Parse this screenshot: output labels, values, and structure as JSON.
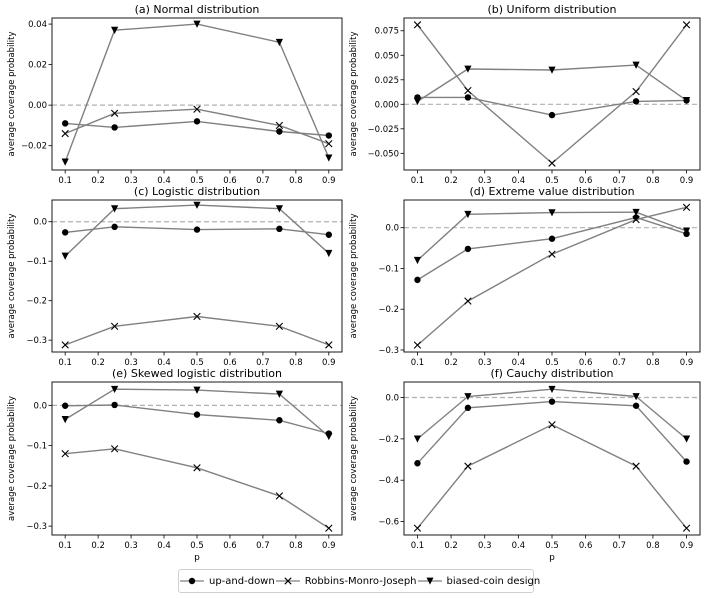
{
  "chart_data": [
    {
      "type": "line",
      "title": "(a) Normal distribution",
      "xlabel": "",
      "ylabel": "average coverage probability",
      "x": [
        0.1,
        0.25,
        0.5,
        0.75,
        0.9
      ],
      "xticks": [
        0.1,
        0.2,
        0.3,
        0.4,
        0.5,
        0.6,
        0.7,
        0.8,
        0.9
      ],
      "xtick_labels": [
        "0.1",
        "0.2",
        "0.3",
        "0.4",
        "0.5",
        "0.6",
        "0.7",
        "0.8",
        "0.9"
      ],
      "xlim": [
        0.06,
        0.94
      ],
      "ylim": [
        -0.032,
        0.043
      ],
      "yticks": [
        -0.02,
        0.0,
        0.02,
        0.04
      ],
      "ytick_labels": [
        "−0.02",
        "0.00",
        "0.02",
        "0.04"
      ],
      "series": [
        {
          "name": "up-and-down",
          "values": [
            -0.009,
            -0.011,
            -0.008,
            -0.013,
            -0.015
          ]
        },
        {
          "name": "Robbins-Monro-Joseph",
          "values": [
            -0.014,
            -0.004,
            -0.002,
            -0.01,
            -0.019
          ]
        },
        {
          "name": "biased-coin design",
          "values": [
            -0.028,
            0.037,
            0.04,
            0.031,
            -0.026
          ]
        }
      ]
    },
    {
      "type": "line",
      "title": "(b) Uniform distribution",
      "xlabel": "",
      "ylabel": "average coverage probability",
      "x": [
        0.1,
        0.25,
        0.5,
        0.75,
        0.9
      ],
      "xticks": [
        0.1,
        0.2,
        0.3,
        0.4,
        0.5,
        0.6,
        0.7,
        0.8,
        0.9
      ],
      "xtick_labels": [
        "0.1",
        "0.2",
        "0.3",
        "0.4",
        "0.5",
        "0.6",
        "0.7",
        "0.8",
        "0.9"
      ],
      "xlim": [
        0.06,
        0.94
      ],
      "ylim": [
        -0.067,
        0.088
      ],
      "yticks": [
        -0.05,
        -0.025,
        0.0,
        0.025,
        0.05,
        0.075
      ],
      "ytick_labels": [
        "−0.050",
        "−0.025",
        "0.000",
        "0.025",
        "0.050",
        "0.075"
      ],
      "series": [
        {
          "name": "up-and-down",
          "values": [
            0.007,
            0.007,
            -0.011,
            0.003,
            0.004
          ]
        },
        {
          "name": "Robbins-Monro-Joseph",
          "values": [
            0.081,
            0.014,
            -0.06,
            0.013,
            0.081
          ]
        },
        {
          "name": "biased-coin design",
          "values": [
            0.003,
            0.036,
            0.035,
            0.04,
            0.004
          ]
        }
      ]
    },
    {
      "type": "line",
      "title": "(c) Logistic distribution",
      "xlabel": "",
      "ylabel": "average coverage probability",
      "x": [
        0.1,
        0.25,
        0.5,
        0.75,
        0.9
      ],
      "xticks": [
        0.1,
        0.2,
        0.3,
        0.4,
        0.5,
        0.6,
        0.7,
        0.8,
        0.9
      ],
      "xtick_labels": [
        "0.1",
        "0.2",
        "0.3",
        "0.4",
        "0.5",
        "0.6",
        "0.7",
        "0.8",
        "0.9"
      ],
      "xlim": [
        0.06,
        0.94
      ],
      "ylim": [
        -0.33,
        0.055
      ],
      "yticks": [
        -0.3,
        -0.2,
        -0.1,
        0.0
      ],
      "ytick_labels": [
        "−0.3",
        "−0.2",
        "−0.1",
        "0.0"
      ],
      "series": [
        {
          "name": "up-and-down",
          "values": [
            -0.027,
            -0.013,
            -0.02,
            -0.018,
            -0.033
          ]
        },
        {
          "name": "Robbins-Monro-Joseph",
          "values": [
            -0.312,
            -0.265,
            -0.24,
            -0.265,
            -0.312
          ]
        },
        {
          "name": "biased-coin design",
          "values": [
            -0.087,
            0.033,
            0.042,
            0.033,
            -0.08
          ]
        }
      ]
    },
    {
      "type": "line",
      "title": "(d) Extreme value distribution",
      "xlabel": "",
      "ylabel": "average coverage probability",
      "x": [
        0.1,
        0.25,
        0.5,
        0.75,
        0.9
      ],
      "xticks": [
        0.1,
        0.2,
        0.3,
        0.4,
        0.5,
        0.6,
        0.7,
        0.8,
        0.9
      ],
      "xtick_labels": [
        "0.1",
        "0.2",
        "0.3",
        "0.4",
        "0.5",
        "0.6",
        "0.7",
        "0.8",
        "0.9"
      ],
      "xlim": [
        0.06,
        0.94
      ],
      "ylim": [
        -0.305,
        0.068
      ],
      "yticks": [
        -0.3,
        -0.2,
        -0.1,
        0.0
      ],
      "ytick_labels": [
        "−0.3",
        "−0.2",
        "−0.1",
        "0.0"
      ],
      "series": [
        {
          "name": "up-and-down",
          "values": [
            -0.128,
            -0.052,
            -0.027,
            0.025,
            -0.015
          ]
        },
        {
          "name": "Robbins-Monro-Joseph",
          "values": [
            -0.288,
            -0.18,
            -0.065,
            0.02,
            0.05
          ]
        },
        {
          "name": "biased-coin design",
          "values": [
            -0.08,
            0.033,
            0.037,
            0.038,
            -0.008
          ]
        }
      ]
    },
    {
      "type": "line",
      "title": "(e) Skewed logistic distribution",
      "xlabel": "p",
      "ylabel": "average coverage probability",
      "x": [
        0.1,
        0.25,
        0.5,
        0.75,
        0.9
      ],
      "xticks": [
        0.1,
        0.2,
        0.3,
        0.4,
        0.5,
        0.6,
        0.7,
        0.8,
        0.9
      ],
      "xtick_labels": [
        "0.1",
        "0.2",
        "0.3",
        "0.4",
        "0.5",
        "0.6",
        "0.7",
        "0.8",
        "0.9"
      ],
      "xlim": [
        0.06,
        0.94
      ],
      "ylim": [
        -0.322,
        0.058
      ],
      "yticks": [
        -0.3,
        -0.2,
        -0.1,
        0.0
      ],
      "ytick_labels": [
        "−0.3",
        "−0.2",
        "−0.1",
        "0.0"
      ],
      "series": [
        {
          "name": "up-and-down",
          "values": [
            -0.001,
            0.001,
            -0.023,
            -0.037,
            -0.07
          ]
        },
        {
          "name": "Robbins-Monro-Joseph",
          "values": [
            -0.12,
            -0.108,
            -0.155,
            -0.225,
            -0.305
          ]
        },
        {
          "name": "biased-coin design",
          "values": [
            -0.035,
            0.04,
            0.038,
            0.028,
            -0.077
          ]
        }
      ]
    },
    {
      "type": "line",
      "title": "(f) Cauchy distribution",
      "xlabel": "p",
      "ylabel": "average coverage probability",
      "x": [
        0.1,
        0.25,
        0.5,
        0.75,
        0.9
      ],
      "xticks": [
        0.1,
        0.2,
        0.3,
        0.4,
        0.5,
        0.6,
        0.7,
        0.8,
        0.9
      ],
      "xtick_labels": [
        "0.1",
        "0.2",
        "0.3",
        "0.4",
        "0.5",
        "0.6",
        "0.7",
        "0.8",
        "0.9"
      ],
      "xlim": [
        0.06,
        0.94
      ],
      "ylim": [
        -0.665,
        0.075
      ],
      "yticks": [
        -0.6,
        -0.4,
        -0.2,
        0.0
      ],
      "ytick_labels": [
        "−0.6",
        "−0.4",
        "−0.2",
        "0.0"
      ],
      "series": [
        {
          "name": "up-and-down",
          "values": [
            -0.318,
            -0.05,
            -0.02,
            -0.04,
            -0.31
          ]
        },
        {
          "name": "Robbins-Monro-Joseph",
          "values": [
            -0.632,
            -0.332,
            -0.132,
            -0.332,
            -0.632
          ]
        },
        {
          "name": "biased-coin design",
          "values": [
            -0.2,
            0.005,
            0.04,
            0.005,
            -0.2
          ]
        }
      ]
    }
  ],
  "legend": [
    {
      "label": "up-and-down",
      "marker": "circle"
    },
    {
      "label": "Robbins-Monro-Joseph",
      "marker": "x"
    },
    {
      "label": "biased-coin design",
      "marker": "triangle-down"
    }
  ],
  "colors": {
    "line": "#808080",
    "marker": "#000000",
    "reference": "#b0b0b0"
  }
}
